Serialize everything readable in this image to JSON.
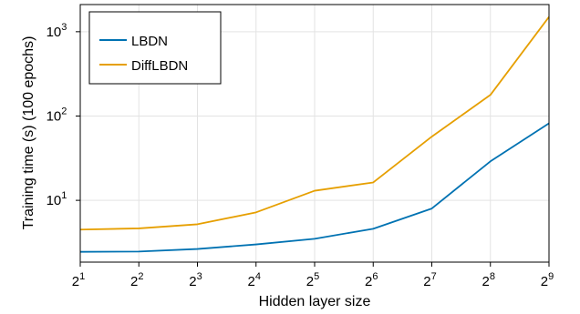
{
  "chart_data": {
    "type": "line",
    "xlabel": "Hidden layer size",
    "ylabel": "Training time (s) (100 epochs)",
    "x_exponents": [
      1,
      2,
      3,
      4,
      5,
      6,
      7,
      8,
      9
    ],
    "x_tick_base": "2",
    "y_tick_base": "10",
    "y_tick_exponents": [
      1,
      2,
      3
    ],
    "xscale": "log2",
    "yscale": "log10",
    "ylim": [
      1.85,
      2100
    ],
    "grid": true,
    "legend_position": "top-left",
    "series": [
      {
        "name": "LBDN",
        "color": "#0072b2",
        "values": [
          2.45,
          2.47,
          2.65,
          3.0,
          3.5,
          4.6,
          8.0,
          29,
          82
        ]
      },
      {
        "name": "DiffLBDN",
        "color": "#e69f00",
        "values": [
          4.5,
          4.65,
          5.2,
          7.2,
          13.0,
          16.3,
          57,
          178,
          1500
        ]
      }
    ]
  }
}
